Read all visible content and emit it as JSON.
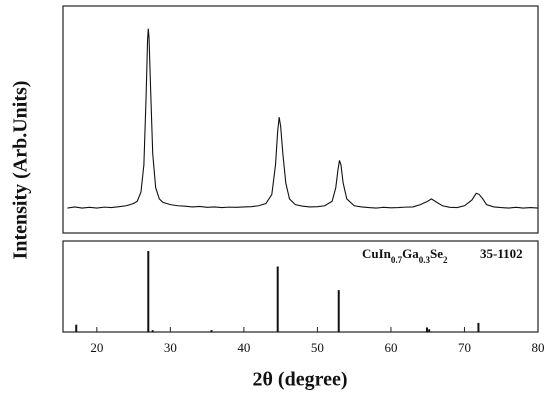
{
  "chart_data": [
    {
      "type": "line",
      "ylabel": "Intensity (Arb.Units)",
      "color": "#111111",
      "xlim": [
        15.4,
        80
      ],
      "ylim": [
        0,
        100
      ],
      "x": [
        16,
        17,
        18,
        19,
        20,
        21,
        22,
        23,
        24,
        25,
        25.5,
        26,
        26.4,
        26.7,
        26.9,
        27,
        27.1,
        27.3,
        27.6,
        28,
        28.5,
        29,
        30,
        31,
        32,
        33,
        34,
        35,
        36,
        37,
        38,
        39,
        40,
        41,
        42,
        43,
        43.8,
        44.3,
        44.6,
        44.8,
        45,
        45.3,
        45.7,
        46.2,
        47,
        48,
        49,
        50,
        51,
        52,
        52.5,
        52.8,
        53,
        53.2,
        53.5,
        54,
        55,
        56,
        57,
        58,
        59,
        60,
        61,
        62,
        63,
        64,
        65,
        65.5,
        66,
        67,
        68,
        69,
        70,
        71,
        71.6,
        72,
        72.5,
        73,
        74,
        75,
        76,
        77,
        78,
        79,
        80
      ],
      "values": [
        11,
        11.5,
        11,
        11.3,
        11,
        11.4,
        11.2,
        11.6,
        12,
        13,
        14,
        18,
        30,
        60,
        85,
        90,
        86,
        65,
        35,
        20,
        15,
        13.5,
        12.5,
        12,
        11.8,
        11.5,
        11.7,
        11.3,
        11.5,
        11.2,
        11.4,
        11.3,
        11.5,
        11.6,
        12,
        13,
        17,
        30,
        45,
        51,
        47,
        35,
        22,
        15,
        12.5,
        11.8,
        11.5,
        11.6,
        12,
        14,
        20,
        28,
        32,
        30,
        22,
        15,
        12,
        11.5,
        11.2,
        11,
        11.3,
        11.1,
        11.2,
        11.4,
        11.5,
        12.5,
        14,
        15,
        14,
        12,
        11.3,
        11.2,
        12,
        14.5,
        17.5,
        17,
        15,
        12.5,
        11.5,
        11.2,
        11,
        11.3,
        11,
        11.2,
        11
      ]
    },
    {
      "type": "stem",
      "xlabel": "2θ (degree)",
      "color": "#111111",
      "annotation": [
        "CuIn",
        "0.7",
        "Ga",
        "0.3",
        "Se",
        "2"
      ],
      "card": "35-1102",
      "xlim": [
        15.4,
        80
      ],
      "ylim": [
        0,
        100
      ],
      "xticks": [
        20,
        30,
        40,
        50,
        60,
        70,
        80
      ],
      "x": [
        17.2,
        27,
        27.6,
        35.6,
        44.6,
        52.9,
        64.9,
        65.2,
        71.9
      ],
      "values": [
        8,
        89,
        2,
        2,
        72,
        46,
        5,
        3,
        10
      ]
    }
  ]
}
